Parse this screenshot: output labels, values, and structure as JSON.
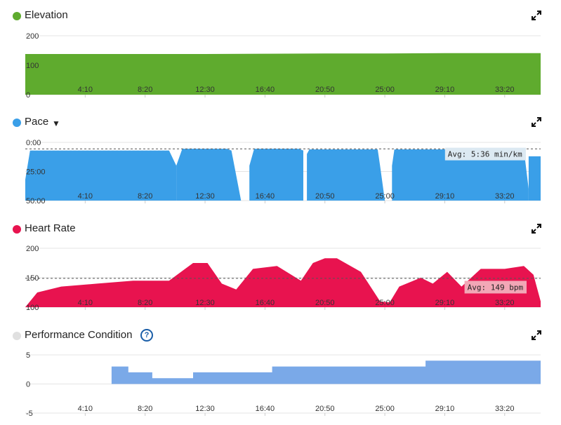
{
  "x_ticks": [
    "4:10",
    "8:20",
    "12:30",
    "16:40",
    "20:50",
    "25:00",
    "29:10",
    "33:20"
  ],
  "icons": {
    "expand": "expand-arrows-icon",
    "help": "question-circle-icon",
    "dropdown": "caret-down-icon"
  },
  "panels": {
    "elevation": {
      "title": "Elevation",
      "color": "#5fab2e"
    },
    "pace": {
      "title": "Pace",
      "color": "#3a9fe8",
      "avg_label": "Avg: 5:36 min/km"
    },
    "heart_rate": {
      "title": "Heart Rate",
      "color": "#e8134f",
      "avg_label": "Avg: 149 bpm"
    },
    "performance": {
      "title": "Performance Condition",
      "color": "#7aa9e8",
      "dot_color": "#e0e0e0",
      "help": "?"
    }
  },
  "chart_data": [
    {
      "type": "area",
      "title": "Elevation",
      "x_ticks": [
        "4:10",
        "8:20",
        "12:30",
        "16:40",
        "20:50",
        "25:00",
        "29:10",
        "33:20"
      ],
      "y_ticks": [
        "200",
        "100",
        "0"
      ],
      "ylim": [
        0,
        200
      ],
      "xlim_seconds": [
        0,
        2150
      ],
      "x_seconds": [
        0,
        250,
        500,
        750,
        1000,
        1250,
        1500,
        1750,
        2000,
        2150
      ],
      "values": [
        138,
        138,
        138,
        138,
        139,
        140,
        140,
        141,
        141,
        141
      ]
    },
    {
      "type": "area",
      "title": "Pace",
      "y_ticks": [
        "0:00",
        "25:00",
        "50:00"
      ],
      "ylim_minutes": [
        0,
        50
      ],
      "inverted": true,
      "average": "5:36 min/km",
      "segments": [
        {
          "x_seconds": [
            0,
            20,
            600,
            630
          ],
          "values_minutes": [
            32,
            7,
            7,
            20
          ]
        },
        {
          "x_seconds": [
            630,
            655,
            840,
            860,
            900
          ],
          "values_minutes": [
            20,
            5.5,
            5.5,
            7,
            50
          ]
        },
        {
          "x_seconds": [
            935,
            955,
            1140,
            1160
          ],
          "values_minutes": [
            20,
            5.5,
            5.5,
            7
          ]
        },
        {
          "x_seconds": [
            1175,
            1185,
            1470,
            1480,
            1500
          ],
          "values_minutes": [
            10,
            6,
            6,
            20,
            50
          ]
        },
        {
          "x_seconds": [
            1530,
            1540,
            1760,
            1800,
            1900,
            2080,
            2100
          ],
          "values_minutes": [
            20,
            6,
            6,
            9,
            6,
            6,
            40
          ]
        },
        {
          "x_seconds": [
            2100,
            2110,
            2150
          ],
          "values_minutes": [
            12,
            12,
            12
          ]
        }
      ]
    },
    {
      "type": "area",
      "title": "Heart Rate",
      "y_ticks": [
        "200",
        "150",
        "100"
      ],
      "ylim": [
        100,
        200
      ],
      "average": "149 bpm",
      "x_seconds": [
        0,
        50,
        150,
        300,
        450,
        600,
        700,
        760,
        820,
        880,
        950,
        1050,
        1150,
        1200,
        1250,
        1300,
        1400,
        1480,
        1520,
        1560,
        1650,
        1700,
        1760,
        1820,
        1900,
        2000,
        2080,
        2120,
        2150
      ],
      "values": [
        100,
        125,
        135,
        140,
        145,
        145,
        175,
        175,
        140,
        130,
        165,
        170,
        145,
        175,
        183,
        183,
        160,
        110,
        108,
        135,
        150,
        140,
        160,
        135,
        165,
        165,
        170,
        155,
        110
      ]
    },
    {
      "type": "area",
      "title": "Performance Condition",
      "y_ticks": [
        "5",
        "0",
        "-5"
      ],
      "ylim": [
        -5,
        5
      ],
      "step": true,
      "x_seconds": [
        360,
        430,
        530,
        700,
        1030,
        1670,
        2150
      ],
      "values": [
        3,
        2,
        1,
        2,
        3,
        4,
        4
      ]
    }
  ]
}
